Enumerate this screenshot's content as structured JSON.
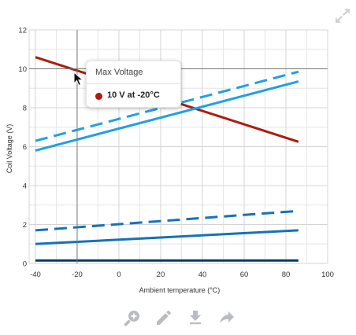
{
  "chart_data": {
    "type": "line",
    "title": "",
    "xlabel": "Ambient temperature (°C)",
    "ylabel": "Coil Voltage (V)",
    "xlim": [
      -43,
      100
    ],
    "ylim": [
      0,
      12
    ],
    "x_ticks": [
      -40,
      -20,
      0,
      20,
      40,
      60,
      80,
      100
    ],
    "y_ticks": [
      0,
      2,
      4,
      6,
      8,
      10,
      12
    ],
    "grid": true,
    "legend": "none",
    "crosshair": {
      "x": -20,
      "y": 10
    },
    "series": [
      {
        "color": "#b01a0f",
        "style": "solid",
        "x": [
          -40,
          86
        ],
        "y": [
          10.6,
          6.25
        ]
      },
      {
        "color": "#1fa0e6",
        "style": "dashed",
        "x": [
          -40,
          86
        ],
        "y": [
          6.3,
          9.85
        ]
      },
      {
        "color": "#1fa0e6",
        "style": "solid",
        "x": [
          -40,
          86
        ],
        "y": [
          5.8,
          9.35
        ]
      },
      {
        "color": "#1473b8",
        "style": "dashed",
        "x": [
          -40,
          86
        ],
        "y": [
          1.7,
          2.7
        ]
      },
      {
        "color": "#1473b8",
        "style": "solid",
        "x": [
          -40,
          86
        ],
        "y": [
          1.0,
          1.7
        ]
      },
      {
        "color": "#0b3a5e",
        "style": "solid",
        "x": [
          -40,
          86
        ],
        "y": [
          0.15,
          0.15
        ]
      }
    ]
  },
  "tooltip": {
    "title": "Max Voltage",
    "value": "10 V at -20°C",
    "dot_color": "#b01a0f"
  },
  "toolbar": {
    "items": [
      "zoom-in-icon",
      "pencil-icon",
      "download-icon",
      "share-arrow-icon"
    ],
    "icon_color": "#b9bcc0"
  },
  "expand_icon": "expand-arrows-icon"
}
